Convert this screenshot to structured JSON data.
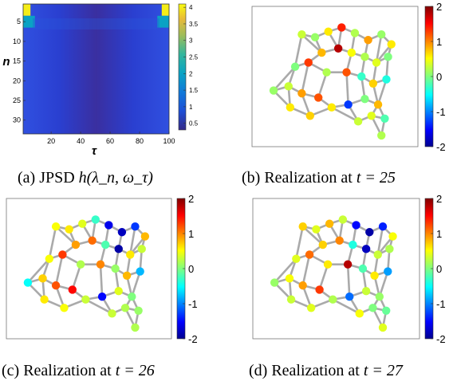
{
  "colors": {
    "node_edge": "#aaaaaa",
    "panel_frame": "#888888",
    "axis": "#222222"
  },
  "panels": [
    {
      "id": "a",
      "caption_label": "(a) JPSD",
      "caption_math": "h(λ_n, ω_τ)",
      "chart": {
        "type": "heatmap",
        "xlabel": "τ",
        "ylabel": "n",
        "x_ticks": [
          20,
          40,
          60,
          80,
          100
        ],
        "y_ticks": [
          5,
          10,
          15,
          20,
          25,
          30
        ],
        "xlim": [
          1,
          100
        ],
        "ylim": [
          1,
          33
        ],
        "colorbar_ticks": [
          0.5,
          1,
          1.5,
          2,
          2.5,
          3,
          3.5,
          4
        ],
        "clim": [
          0.3,
          4.1
        ],
        "colormap": "parula",
        "description_of_values": [
          {
            "n_range": [
              1,
              3
            ],
            "tau_range": [
              1,
              5
            ],
            "value": 4.0
          },
          {
            "n_range": [
              1,
              3
            ],
            "tau_range": [
              96,
              100
            ],
            "value": 4.0
          },
          {
            "n_range": [
              4,
              6
            ],
            "tau_range": [
              1,
              8
            ],
            "value": 2.0
          },
          {
            "n_range": [
              4,
              6
            ],
            "tau_range": [
              93,
              100
            ],
            "value": 2.0
          },
          {
            "n_range": [
              7,
              33
            ],
            "tau_range": [
              1,
              100
            ],
            "value_edges": 1.3,
            "value_center": 0.5
          }
        ]
      }
    },
    {
      "id": "b",
      "caption_label": "(b) Realization at",
      "caption_math": "t = 25",
      "chart": {
        "type": "scatter",
        "colorbar_ticks": [
          "2",
          "1",
          "0",
          "-1",
          "-2"
        ],
        "clim": [
          -2,
          2
        ]
      }
    },
    {
      "id": "c",
      "caption_label": "(c) Realization at",
      "caption_math": "t = 26",
      "chart": {
        "type": "scatter",
        "colorbar_ticks": [
          "2",
          "1",
          "0",
          "-1",
          "-2"
        ],
        "clim": [
          -2,
          2
        ]
      }
    },
    {
      "id": "d",
      "caption_label": "(d) Realization at",
      "caption_math": "t = 27",
      "chart": {
        "type": "scatter",
        "colorbar_ticks": [
          "2",
          "1",
          "0",
          "-1",
          "-2"
        ],
        "clim": [
          -2,
          2
        ]
      }
    }
  ],
  "chart_data": [
    {
      "type": "heatmap",
      "title": "",
      "xlabel": "τ",
      "ylabel": "n",
      "x_ticks": [
        20,
        40,
        60,
        80,
        100
      ],
      "y_ticks": [
        5,
        10,
        15,
        20,
        25,
        30
      ],
      "colorbar_ticks": [
        0.5,
        1,
        1.5,
        2,
        2.5,
        3,
        3.5,
        4
      ]
    },
    {
      "type": "scatter",
      "title": "",
      "colorbar_ticks": [
        2,
        1,
        0,
        -1,
        -2
      ]
    },
    {
      "type": "scatter",
      "title": "",
      "colorbar_ticks": [
        2,
        1,
        0,
        -1,
        -2
      ]
    },
    {
      "type": "scatter",
      "title": "",
      "colorbar_ticks": [
        2,
        1,
        0,
        -1,
        -2
      ]
    }
  ]
}
